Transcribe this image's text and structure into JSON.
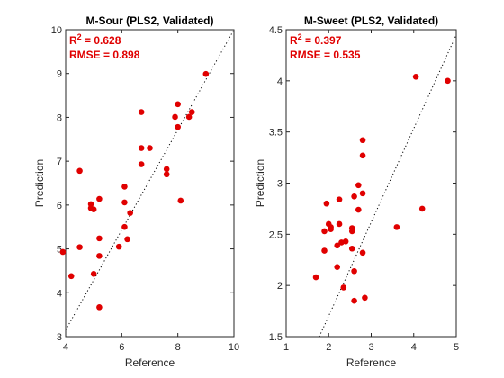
{
  "chart_data": [
    {
      "type": "scatter",
      "title": "M-Sour (PLS2, Validated)",
      "xlabel": "Reference",
      "ylabel": "Prediction",
      "xlim": [
        4,
        10
      ],
      "ylim": [
        3,
        10
      ],
      "xticks": [
        4,
        6,
        8,
        10
      ],
      "yticks": [
        3,
        4,
        5,
        6,
        7,
        8,
        9,
        10
      ],
      "xtick_labels": [
        "4",
        "6",
        "8",
        "10"
      ],
      "ytick_labels": [
        "3",
        "4",
        "5",
        "6",
        "7",
        "8",
        "9",
        "10"
      ],
      "stats": {
        "r2_prefix": "R",
        "r2_exp": "2",
        "r2_value": " = 0.628",
        "rmse": "RMSE = 0.898"
      },
      "stat_color": "#e00000",
      "point_color": "#e00000",
      "fit_line": {
        "x": [
          4,
          10
        ],
        "y": [
          3.15,
          10.0
        ]
      },
      "series": [
        {
          "x": [
            3.9,
            4.2,
            4.5,
            4.5,
            4.9,
            4.9,
            5.0,
            5.0,
            5.2,
            5.2,
            5.2,
            5.2,
            5.9,
            6.1,
            6.1,
            6.1,
            6.2,
            6.3,
            6.7,
            6.7,
            6.7,
            7.0,
            7.6,
            7.6,
            7.9,
            8.0,
            8.0,
            8.1,
            8.4,
            8.5,
            9.0
          ],
          "y": [
            4.93,
            4.38,
            5.04,
            6.78,
            5.93,
            6.02,
            4.43,
            5.9,
            3.67,
            4.84,
            5.24,
            6.14,
            5.05,
            5.5,
            6.06,
            6.42,
            5.22,
            5.82,
            6.93,
            7.3,
            8.12,
            7.3,
            6.7,
            6.82,
            8.01,
            7.78,
            8.3,
            6.1,
            8.01,
            8.12,
            8.99
          ]
        }
      ]
    },
    {
      "type": "scatter",
      "title": "M-Sweet (PLS2, Validated)",
      "xlabel": "Reference",
      "ylabel": "Prediction",
      "xlim": [
        1,
        5
      ],
      "ylim": [
        1.5,
        4.5
      ],
      "xticks": [
        1,
        2,
        3,
        4,
        5
      ],
      "yticks": [
        1.5,
        2,
        2.5,
        3,
        3.5,
        4,
        4.5
      ],
      "xtick_labels": [
        "1",
        "2",
        "3",
        "4",
        "5"
      ],
      "ytick_labels": [
        "1.5",
        "2",
        "2.5",
        "3",
        "3.5",
        "4",
        "4.5"
      ],
      "stats": {
        "r2_prefix": "R",
        "r2_exp": "2",
        "r2_value": " = 0.397",
        "rmse": "RMSE = 0.535"
      },
      "stat_color": "#e00000",
      "point_color": "#e00000",
      "fit_line": {
        "x": [
          1.78,
          5.0
        ],
        "y": [
          1.5,
          4.45
        ]
      },
      "series": [
        {
          "x": [
            1.7,
            1.9,
            1.9,
            1.95,
            2.0,
            2.05,
            2.05,
            2.2,
            2.2,
            2.25,
            2.25,
            2.3,
            2.35,
            2.4,
            2.55,
            2.55,
            2.55,
            2.6,
            2.6,
            2.6,
            2.7,
            2.7,
            2.8,
            2.8,
            2.8,
            2.8,
            2.85,
            3.6,
            4.05,
            4.2,
            4.8
          ],
          "y": [
            2.08,
            2.34,
            2.53,
            2.8,
            2.6,
            2.57,
            2.55,
            2.18,
            2.39,
            2.6,
            2.84,
            2.42,
            1.98,
            2.43,
            2.36,
            2.53,
            2.56,
            2.87,
            2.14,
            1.85,
            2.74,
            2.98,
            3.42,
            3.27,
            2.9,
            2.32,
            1.88,
            2.57,
            4.04,
            2.75,
            4.0
          ]
        }
      ]
    }
  ]
}
